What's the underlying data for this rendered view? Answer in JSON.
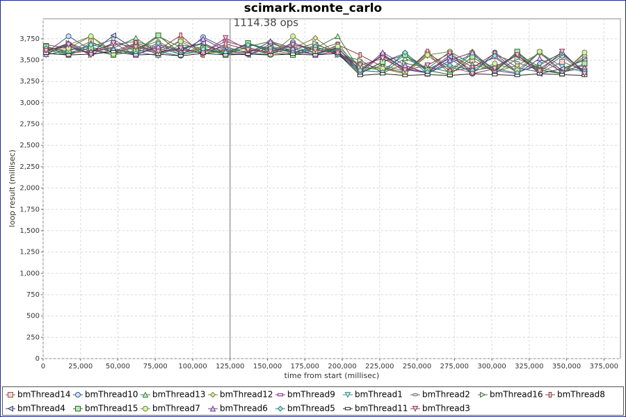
{
  "chart_data": {
    "type": "line",
    "title": "scimark.monte_carlo",
    "x_label": "time from start (millisec)",
    "y_label": "loop result (millisec)",
    "marker": {
      "x": 125000,
      "label": "1114.38 ops"
    },
    "xlim": [
      0,
      386000
    ],
    "ylim": [
      0,
      3985
    ],
    "grid": true,
    "xticks": [
      0,
      {
        "value": 25000,
        "label": "25,000"
      },
      {
        "value": 50000,
        "label": "50,000"
      },
      {
        "value": 75000,
        "label": "75,000"
      },
      {
        "value": 100000,
        "label": "100,000"
      },
      {
        "value": 125000,
        "label": "125,000"
      },
      {
        "value": 150000,
        "label": "150,000"
      },
      {
        "value": 175000,
        "label": "175,000"
      },
      {
        "value": 200000,
        "label": "200,000"
      },
      {
        "value": 225000,
        "label": "225,000"
      },
      {
        "value": 250000,
        "label": "250,000"
      },
      {
        "value": 275000,
        "label": "275,000"
      },
      {
        "value": 300000,
        "label": "300,000"
      },
      {
        "value": 325000,
        "label": "325,000"
      },
      {
        "value": 350000,
        "label": "350,000"
      },
      {
        "value": 375000,
        "label": "375,000"
      }
    ],
    "yticks": [
      0,
      250,
      500,
      750,
      {
        "value": 1000,
        "label": "1,000"
      },
      {
        "value": 1250,
        "label": "1,250"
      },
      {
        "value": 1500,
        "label": "1,500"
      },
      {
        "value": 1750,
        "label": "1,750"
      },
      {
        "value": 2000,
        "label": "2,000"
      },
      {
        "value": 2250,
        "label": "2,250"
      },
      {
        "value": 2500,
        "label": "2,500"
      },
      {
        "value": 2750,
        "label": "2,750"
      },
      {
        "value": 3000,
        "label": "3,000"
      },
      {
        "value": 3250,
        "label": "3,250"
      },
      {
        "value": 3500,
        "label": "3,500"
      },
      {
        "value": 3750,
        "label": "3,750"
      }
    ],
    "x": [
      2000,
      17000,
      32000,
      47000,
      62000,
      77000,
      92000,
      107000,
      122000,
      137000,
      152000,
      167000,
      182000,
      197000,
      212000,
      227000,
      242000,
      257000,
      272000,
      287000,
      302000,
      317000,
      332000,
      347000,
      362000
    ],
    "series": [
      {
        "name": "bmThread14",
        "color": "#8a5a4a",
        "fill": "#f4d8cc",
        "shape": "square",
        "values": [
          3650,
          3600,
          3720,
          3580,
          3690,
          3560,
          3740,
          3610,
          3580,
          3700,
          3620,
          3570,
          3680,
          3600,
          3400,
          3550,
          3360,
          3580,
          3340,
          3500,
          3370,
          3590,
          3350,
          3480,
          3380
        ]
      },
      {
        "name": "bmThread10",
        "color": "#3a5a8a",
        "fill": "#cfe0f4",
        "shape": "circle",
        "values": [
          3590,
          3780,
          3620,
          3560,
          3680,
          3600,
          3550,
          3770,
          3640,
          3590,
          3560,
          3710,
          3580,
          3650,
          3350,
          3480,
          3580,
          3390,
          3520,
          3340,
          3590,
          3410,
          3360,
          3550,
          3340
        ]
      },
      {
        "name": "bmThread13",
        "color": "#3a7a3a",
        "fill": "#cceecc",
        "shape": "triangle-up",
        "values": [
          3620,
          3560,
          3700,
          3640,
          3760,
          3580,
          3630,
          3690,
          3560,
          3660,
          3720,
          3590,
          3640,
          3780,
          3380,
          3360,
          3520,
          3400,
          3600,
          3450,
          3380,
          3570,
          3420,
          3340,
          3580
        ]
      },
      {
        "name": "bmThread12",
        "color": "#7a7a3a",
        "fill": "#e8e8a8",
        "shape": "diamond",
        "values": [
          3570,
          3680,
          3780,
          3600,
          3640,
          3720,
          3580,
          3660,
          3610,
          3560,
          3690,
          3640,
          3760,
          3570,
          3460,
          3400,
          3340,
          3550,
          3380,
          3600,
          3360,
          3440,
          3580,
          3380,
          3520
        ]
      },
      {
        "name": "bmThread9",
        "color": "#8a3a8a",
        "fill": "#f0cff0",
        "shape": "rect-h",
        "values": [
          3680,
          3640,
          3590,
          3700,
          3560,
          3680,
          3620,
          3590,
          3720,
          3650,
          3580,
          3700,
          3620,
          3590,
          3340,
          3570,
          3400,
          3360,
          3560,
          3420,
          3530,
          3350,
          3600,
          3370,
          3440
        ]
      },
      {
        "name": "bmThread1",
        "color": "#3a8a8a",
        "fill": "#c8ecec",
        "shape": "triangle-down",
        "values": [
          3560,
          3620,
          3660,
          3740,
          3600,
          3550,
          3680,
          3640,
          3570,
          3690,
          3610,
          3660,
          3580,
          3630,
          3420,
          3380,
          3560,
          3340,
          3470,
          3560,
          3400,
          3350,
          3590,
          3420,
          3360
        ]
      },
      {
        "name": "bmThread2",
        "color": "#6a6a6a",
        "fill": "#e0e0e0",
        "shape": "ellipse-h",
        "values": [
          3640,
          3580,
          3610,
          3680,
          3720,
          3640,
          3570,
          3600,
          3660,
          3580,
          3720,
          3560,
          3610,
          3700,
          3360,
          3440,
          3370,
          3580,
          3420,
          3350,
          3560,
          3470,
          3380,
          3340,
          3550
        ]
      },
      {
        "name": "bmThread16",
        "color": "#4a6a4a",
        "fill": "#d8e8d8",
        "shape": "triangle-right",
        "values": [
          3600,
          3700,
          3560,
          3620,
          3590,
          3780,
          3650,
          3570,
          3620,
          3600,
          3660,
          3620,
          3700,
          3560,
          3500,
          3350,
          3460,
          3420,
          3360,
          3580,
          3340,
          3520,
          3400,
          3570,
          3360
        ]
      },
      {
        "name": "bmThread8",
        "color": "#8a3a3a",
        "fill": "#f4cccc",
        "shape": "rect-v",
        "values": [
          3580,
          3560,
          3650,
          3600,
          3700,
          3620,
          3790,
          3560,
          3690,
          3620,
          3580,
          3640,
          3560,
          3680,
          3560,
          3420,
          3350,
          3600,
          3370,
          3410,
          3580,
          3360,
          3440,
          3590,
          3350
        ]
      },
      {
        "name": "bmThread4",
        "color": "#3a3a6a",
        "fill": "#d4d4ee",
        "shape": "triangle-left",
        "values": [
          3620,
          3660,
          3580,
          3790,
          3620,
          3590,
          3640,
          3700,
          3580,
          3560,
          3650,
          3600,
          3570,
          3640,
          3380,
          3560,
          3390,
          3350,
          3540,
          3380,
          3420,
          3560,
          3340,
          3400,
          3500
        ]
      },
      {
        "name": "bmThread15",
        "color": "#2a6a2a",
        "fill": "#b8e8b8",
        "shape": "square",
        "values": [
          3660,
          3590,
          3640,
          3560,
          3610,
          3790,
          3580,
          3640,
          3560,
          3700,
          3590,
          3560,
          3640,
          3600,
          3340,
          3480,
          3560,
          3380,
          3330,
          3540,
          3360,
          3600,
          3380,
          3350,
          3460
        ]
      },
      {
        "name": "bmThread7",
        "color": "#6a8a3a",
        "fill": "#d8f0b0",
        "shape": "circle",
        "values": [
          3600,
          3640,
          3780,
          3570,
          3660,
          3600,
          3720,
          3580,
          3600,
          3640,
          3560,
          3780,
          3600,
          3660,
          3420,
          3400,
          3360,
          3560,
          3600,
          3360,
          3460,
          3380,
          3600,
          3340,
          3590
        ]
      },
      {
        "name": "bmThread6",
        "color": "#6a3a8a",
        "fill": "#e0ccf4",
        "shape": "triangle-up",
        "values": [
          3570,
          3700,
          3600,
          3640,
          3560,
          3660,
          3600,
          3750,
          3610,
          3580,
          3720,
          3640,
          3560,
          3610,
          3360,
          3590,
          3440,
          3340,
          3500,
          3590,
          3380,
          3340,
          3520,
          3360,
          3410
        ]
      },
      {
        "name": "bmThread5",
        "color": "#2a7a7a",
        "fill": "#b0e4e4",
        "shape": "diamond",
        "values": [
          3640,
          3570,
          3680,
          3620,
          3580,
          3700,
          3560,
          3630,
          3590,
          3680,
          3640,
          3590,
          3660,
          3560,
          3380,
          3360,
          3590,
          3360,
          3440,
          3380,
          3550,
          3350,
          3460,
          3580,
          3370
        ]
      },
      {
        "name": "bmThread11",
        "color": "#222222",
        "fill": "#ffffff",
        "shape": "rect-h",
        "values": [
          3580,
          3560,
          3570,
          3600,
          3560,
          3570,
          3550,
          3580,
          3560,
          3570,
          3560,
          3570,
          3560,
          3580,
          3320,
          3340,
          3320,
          3330,
          3320,
          3340,
          3330,
          3320,
          3340,
          3330,
          3320
        ]
      },
      {
        "name": "bmThread3",
        "color": "#8a3a5a",
        "fill": "#f0c8d8",
        "shape": "triangle-down",
        "values": [
          3610,
          3680,
          3560,
          3700,
          3650,
          3600,
          3640,
          3580,
          3760,
          3620,
          3600,
          3680,
          3620,
          3580,
          3440,
          3520,
          3380,
          3440,
          3580,
          3340,
          3400,
          3560,
          3370,
          3600,
          3340
        ]
      }
    ]
  }
}
